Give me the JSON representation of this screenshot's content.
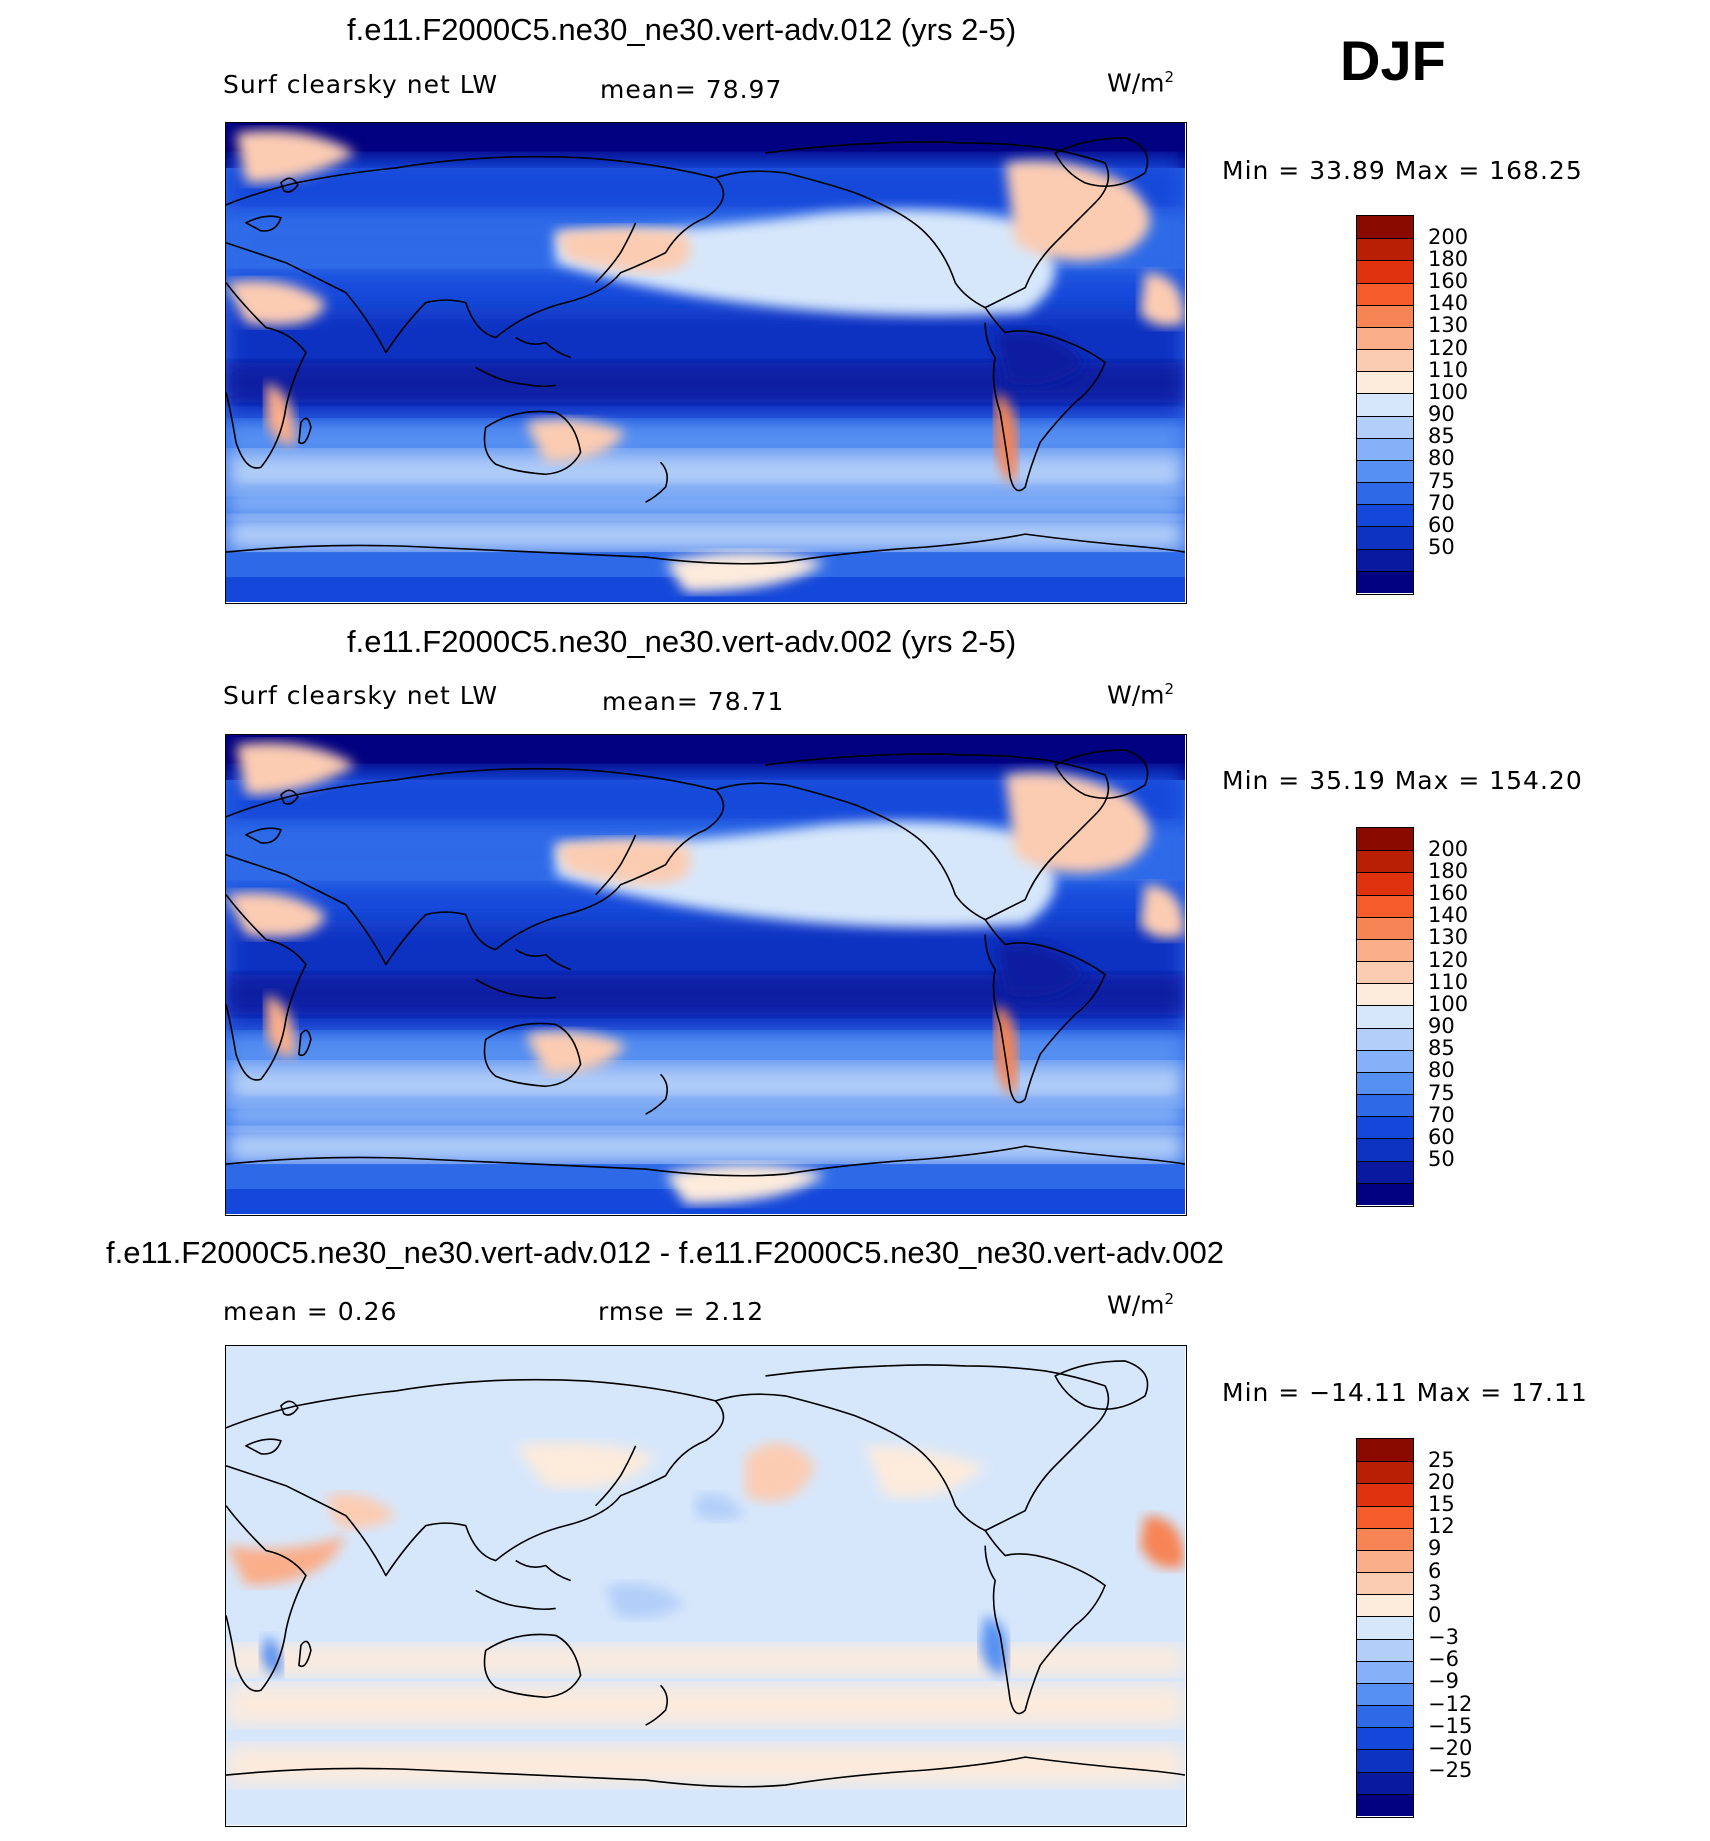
{
  "season": "DJF",
  "colors": {
    "abs_palette": [
      "#000080",
      "#0a1aa0",
      "#0d33c2",
      "#1448da",
      "#2e6ae8",
      "#5690f2",
      "#84b1f7",
      "#b3cff9",
      "#d7e7fb",
      "#fdebdc",
      "#fcccb2",
      "#fbae8a",
      "#f78454",
      "#f65b2c",
      "#e0320e",
      "#b91f05",
      "#8b0a00"
    ],
    "diff_palette": [
      "#000080",
      "#0a1aa0",
      "#0d33c2",
      "#1448da",
      "#2e6ae8",
      "#5690f2",
      "#84b1f7",
      "#b3cff9",
      "#d7e7fb",
      "#fdebdc",
      "#fcccb2",
      "#fbae8a",
      "#f78454",
      "#f65b2c",
      "#e0320e",
      "#b91f05",
      "#8b0a00"
    ]
  },
  "panels": [
    {
      "title": "f.e11.F2000C5.ne30_ne30.vert-adv.012 (yrs 2-5)",
      "left_label": "Surf clearsky net LW",
      "center_label": "mean=  78.97",
      "units": "W/m",
      "units_sup": "2",
      "minmax": "Min =   33.89 Max = 168.25",
      "ticks": [
        "200",
        "180",
        "160",
        "140",
        "130",
        "120",
        "110",
        "100",
        "90",
        "85",
        "80",
        "75",
        "70",
        "60",
        "50"
      ]
    },
    {
      "title": "f.e11.F2000C5.ne30_ne30.vert-adv.002 (yrs 2-5)",
      "left_label": "Surf clearsky net LW",
      "center_label": "mean=  78.71",
      "units": "W/m",
      "units_sup": "2",
      "minmax": "Min =   35.19 Max = 154.20",
      "ticks": [
        "200",
        "180",
        "160",
        "140",
        "130",
        "120",
        "110",
        "100",
        "90",
        "85",
        "80",
        "75",
        "70",
        "60",
        "50"
      ]
    },
    {
      "title": "f.e11.F2000C5.ne30_ne30.vert-adv.012 - f.e11.F2000C5.ne30_ne30.vert-adv.002",
      "left_label": "mean =    0.26",
      "center_label": "rmse =    2.12",
      "units": "W/m",
      "units_sup": "2",
      "minmax": "Min = −14.11 Max =   17.11",
      "ticks": [
        "25",
        "20",
        "15",
        "12",
        "9",
        "6",
        "3",
        "0",
        "−3",
        "−6",
        "−9",
        "−12",
        "−15",
        "−20",
        "−25"
      ]
    }
  ]
}
